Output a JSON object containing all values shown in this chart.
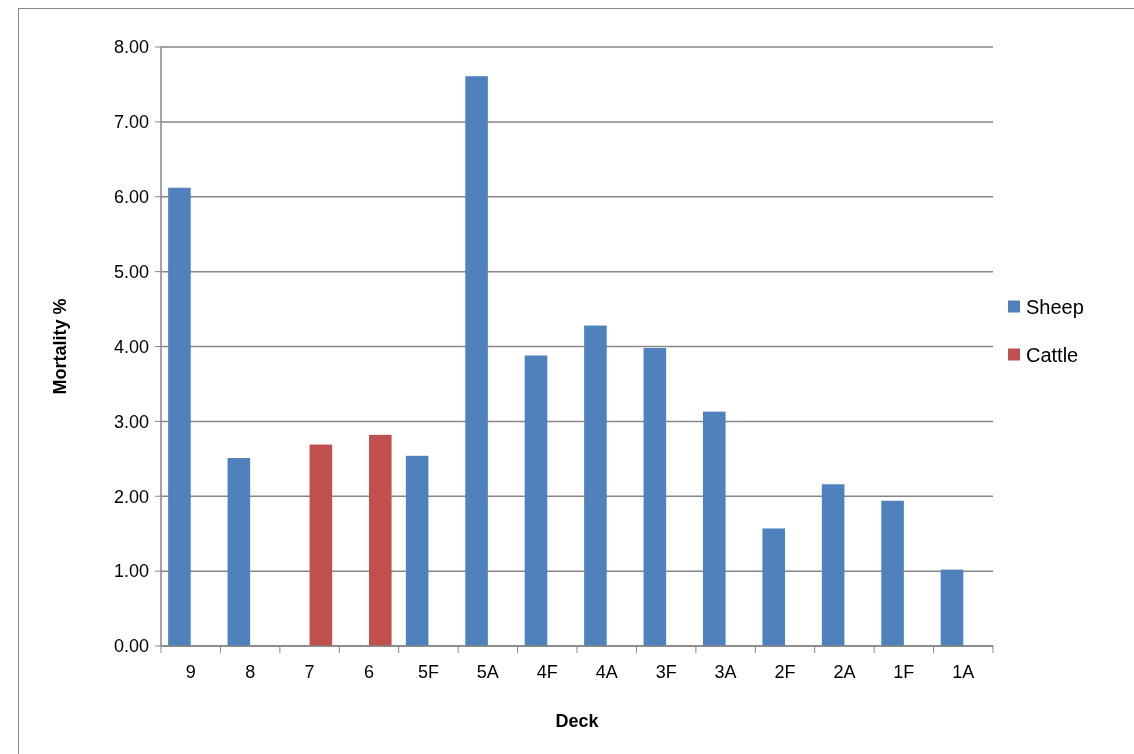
{
  "chart_data": {
    "type": "bar",
    "xlabel": "Deck",
    "ylabel": "Mortality %",
    "categories": [
      "9",
      "8",
      "7",
      "6",
      "5F",
      "5A",
      "4F",
      "4A",
      "3F",
      "3A",
      "2F",
      "2A",
      "1F",
      "1A"
    ],
    "series": [
      {
        "name": "Sheep",
        "color": "#4f81bd",
        "values": [
          6.12,
          2.51,
          null,
          null,
          2.54,
          7.61,
          3.88,
          4.28,
          3.98,
          3.13,
          1.57,
          2.16,
          1.94,
          1.02
        ]
      },
      {
        "name": "Cattle",
        "color": "#c0504d",
        "values": [
          null,
          null,
          2.69,
          2.82,
          null,
          null,
          null,
          null,
          null,
          null,
          null,
          null,
          null,
          null
        ]
      }
    ],
    "ylim": [
      0,
      8
    ],
    "yticks": [
      {
        "value": 0,
        "label": "0.00"
      },
      {
        "value": 1,
        "label": "1.00"
      },
      {
        "value": 2,
        "label": "2.00"
      },
      {
        "value": 3,
        "label": "3.00"
      },
      {
        "value": 4,
        "label": "4.00"
      },
      {
        "value": 5,
        "label": "5.00"
      },
      {
        "value": 6,
        "label": "6.00"
      },
      {
        "value": 7,
        "label": "7.00"
      },
      {
        "value": 8,
        "label": "8.00"
      }
    ],
    "grid": "y",
    "legend": "right"
  }
}
